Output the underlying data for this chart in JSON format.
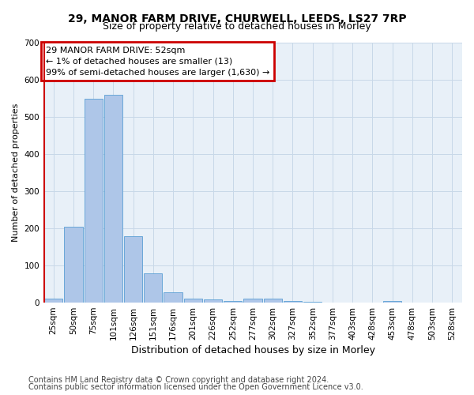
{
  "title1": "29, MANOR FARM DRIVE, CHURWELL, LEEDS, LS27 7RP",
  "title2": "Size of property relative to detached houses in Morley",
  "xlabel": "Distribution of detached houses by size in Morley",
  "ylabel": "Number of detached properties",
  "footer1": "Contains HM Land Registry data © Crown copyright and database right 2024.",
  "footer2": "Contains public sector information licensed under the Open Government Licence v3.0.",
  "annotation_line1": "29 MANOR FARM DRIVE: 52sqm",
  "annotation_line2": "← 1% of detached houses are smaller (13)",
  "annotation_line3": "99% of semi-detached houses are larger (1,630) →",
  "bar_labels": [
    "25sqm",
    "50sqm",
    "75sqm",
    "101sqm",
    "126sqm",
    "151sqm",
    "176sqm",
    "201sqm",
    "226sqm",
    "252sqm",
    "277sqm",
    "302sqm",
    "327sqm",
    "352sqm",
    "377sqm",
    "403sqm",
    "428sqm",
    "453sqm",
    "478sqm",
    "503sqm",
    "528sqm"
  ],
  "bar_values": [
    10,
    205,
    550,
    560,
    178,
    78,
    28,
    10,
    8,
    5,
    10,
    10,
    5,
    3,
    1,
    0,
    0,
    5,
    0,
    0,
    0
  ],
  "bar_color": "#aec6e8",
  "bar_edge_color": "#5a9fd4",
  "highlight_color": "#cc0000",
  "annotation_box_color": "#cc0000",
  "ylim": [
    0,
    700
  ],
  "yticks": [
    0,
    100,
    200,
    300,
    400,
    500,
    600,
    700
  ],
  "grid_color": "#c8d8e8",
  "background_color": "#e8f0f8",
  "title1_fontsize": 10,
  "title2_fontsize": 9,
  "xlabel_fontsize": 9,
  "ylabel_fontsize": 8,
  "footer_fontsize": 7,
  "tick_fontsize": 7.5,
  "annot_fontsize": 8
}
